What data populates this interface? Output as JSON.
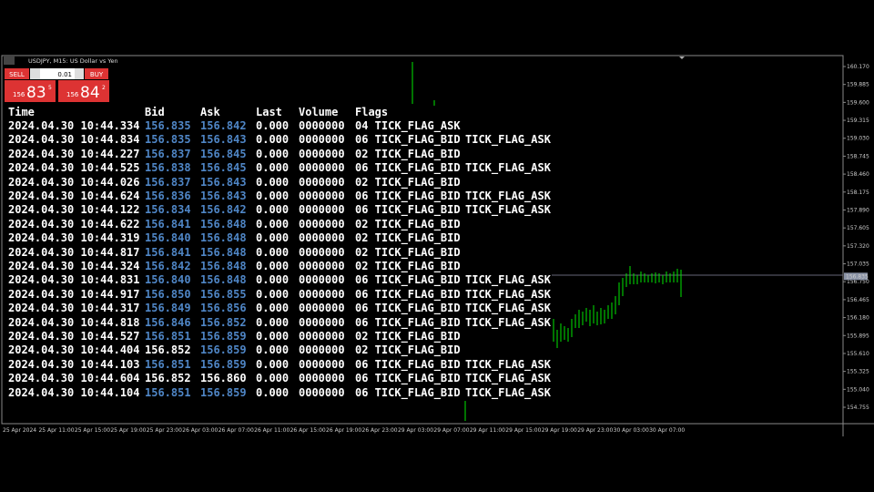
{
  "window": {
    "title": "USDJPY, M15:  US Dollar vs Yen"
  },
  "trade_panel": {
    "sell": "SELL",
    "buy": "BUY",
    "lot": "0.01",
    "sell_big": "83",
    "sell_small": "156",
    "sell_sup": "5",
    "buy_big": "84",
    "buy_small": "156",
    "buy_sup": "2"
  },
  "colors": {
    "changed": "#4f86c6",
    "unchanged": "#ffffff"
  },
  "table": {
    "headers": [
      "Time",
      "Bid",
      "Ask",
      "Last",
      "Volume",
      "Flags"
    ],
    "rows": [
      {
        "time": "2024.04.30 10:44.334",
        "bid": "156.835",
        "ask": "156.842",
        "last": "0.000",
        "volume": "0000000",
        "flags": [
          "04 TICK_FLAG_ASK"
        ],
        "bid_changed": true,
        "ask_changed": true
      },
      {
        "time": "2024.04.30 10:44.834",
        "bid": "156.835",
        "ask": "156.843",
        "last": "0.000",
        "volume": "0000000",
        "flags": [
          "06 TICK_FLAG_BID",
          "TICK_FLAG_ASK"
        ],
        "bid_changed": true,
        "ask_changed": true
      },
      {
        "time": "2024.04.30 10:44.227",
        "bid": "156.837",
        "ask": "156.845",
        "last": "0.000",
        "volume": "0000000",
        "flags": [
          "02 TICK_FLAG_BID"
        ],
        "bid_changed": true,
        "ask_changed": true
      },
      {
        "time": "2024.04.30 10:44.525",
        "bid": "156.838",
        "ask": "156.845",
        "last": "0.000",
        "volume": "0000000",
        "flags": [
          "06 TICK_FLAG_BID",
          "TICK_FLAG_ASK"
        ],
        "bid_changed": true,
        "ask_changed": true
      },
      {
        "time": "2024.04.30 10:44.026",
        "bid": "156.837",
        "ask": "156.843",
        "last": "0.000",
        "volume": "0000000",
        "flags": [
          "02 TICK_FLAG_BID"
        ],
        "bid_changed": true,
        "ask_changed": true
      },
      {
        "time": "2024.04.30 10:44.624",
        "bid": "156.836",
        "ask": "156.843",
        "last": "0.000",
        "volume": "0000000",
        "flags": [
          "06 TICK_FLAG_BID",
          "TICK_FLAG_ASK"
        ],
        "bid_changed": true,
        "ask_changed": true
      },
      {
        "time": "2024.04.30 10:44.122",
        "bid": "156.834",
        "ask": "156.842",
        "last": "0.000",
        "volume": "0000000",
        "flags": [
          "06 TICK_FLAG_BID",
          "TICK_FLAG_ASK"
        ],
        "bid_changed": true,
        "ask_changed": true
      },
      {
        "time": "2024.04.30 10:44.622",
        "bid": "156.841",
        "ask": "156.848",
        "last": "0.000",
        "volume": "0000000",
        "flags": [
          "02 TICK_FLAG_BID"
        ],
        "bid_changed": true,
        "ask_changed": true
      },
      {
        "time": "2024.04.30 10:44.319",
        "bid": "156.840",
        "ask": "156.848",
        "last": "0.000",
        "volume": "0000000",
        "flags": [
          "02 TICK_FLAG_BID"
        ],
        "bid_changed": true,
        "ask_changed": true
      },
      {
        "time": "2024.04.30 10:44.817",
        "bid": "156.841",
        "ask": "156.848",
        "last": "0.000",
        "volume": "0000000",
        "flags": [
          "02 TICK_FLAG_BID"
        ],
        "bid_changed": true,
        "ask_changed": true
      },
      {
        "time": "2024.04.30 10:44.324",
        "bid": "156.842",
        "ask": "156.848",
        "last": "0.000",
        "volume": "0000000",
        "flags": [
          "02 TICK_FLAG_BID"
        ],
        "bid_changed": true,
        "ask_changed": true
      },
      {
        "time": "2024.04.30 10:44.831",
        "bid": "156.840",
        "ask": "156.848",
        "last": "0.000",
        "volume": "0000000",
        "flags": [
          "06 TICK_FLAG_BID",
          "TICK_FLAG_ASK"
        ],
        "bid_changed": true,
        "ask_changed": true
      },
      {
        "time": "2024.04.30 10:44.917",
        "bid": "156.850",
        "ask": "156.855",
        "last": "0.000",
        "volume": "0000000",
        "flags": [
          "06 TICK_FLAG_BID",
          "TICK_FLAG_ASK"
        ],
        "bid_changed": true,
        "ask_changed": true
      },
      {
        "time": "2024.04.30 10:44.317",
        "bid": "156.849",
        "ask": "156.856",
        "last": "0.000",
        "volume": "0000000",
        "flags": [
          "06 TICK_FLAG_BID",
          "TICK_FLAG_ASK"
        ],
        "bid_changed": true,
        "ask_changed": true
      },
      {
        "time": "2024.04.30 10:44.818",
        "bid": "156.846",
        "ask": "156.852",
        "last": "0.000",
        "volume": "0000000",
        "flags": [
          "06 TICK_FLAG_BID",
          "TICK_FLAG_ASK"
        ],
        "bid_changed": true,
        "ask_changed": true
      },
      {
        "time": "2024.04.30 10:44.527",
        "bid": "156.851",
        "ask": "156.859",
        "last": "0.000",
        "volume": "0000000",
        "flags": [
          "02 TICK_FLAG_BID"
        ],
        "bid_changed": true,
        "ask_changed": true
      },
      {
        "time": "2024.04.30 10:44.404",
        "bid": "156.852",
        "ask": "156.859",
        "last": "0.000",
        "volume": "0000000",
        "flags": [
          "02 TICK_FLAG_BID"
        ],
        "bid_changed": false,
        "ask_changed": true
      },
      {
        "time": "2024.04.30 10:44.103",
        "bid": "156.851",
        "ask": "156.859",
        "last": "0.000",
        "volume": "0000000",
        "flags": [
          "06 TICK_FLAG_BID",
          "TICK_FLAG_ASK"
        ],
        "bid_changed": true,
        "ask_changed": true
      },
      {
        "time": "2024.04.30 10:44.604",
        "bid": "156.852",
        "ask": "156.860",
        "last": "0.000",
        "volume": "0000000",
        "flags": [
          "06 TICK_FLAG_BID",
          "TICK_FLAG_ASK"
        ],
        "bid_changed": false,
        "ask_changed": false
      },
      {
        "time": "2024.04.30 10:44.104",
        "bid": "156.851",
        "ask": "156.859",
        "last": "0.000",
        "volume": "0000000",
        "flags": [
          "06 TICK_FLAG_BID",
          "TICK_FLAG_ASK"
        ],
        "bid_changed": true,
        "ask_changed": true
      }
    ]
  },
  "price_axis": {
    "labels": [
      "160.170",
      "159.885",
      "159.600",
      "159.315",
      "159.030",
      "158.745",
      "158.460",
      "158.175",
      "157.890",
      "157.605",
      "157.320",
      "157.035",
      "156.750",
      "156.465",
      "156.180",
      "155.895",
      "155.610",
      "155.325",
      "155.040",
      "154.755"
    ],
    "current": "156.835"
  },
  "time_axis": {
    "labels": [
      "25 Apr 2024",
      "25 Apr 11:00",
      "25 Apr 15:00",
      "25 Apr 19:00",
      "25 Apr 23:00",
      "26 Apr 03:00",
      "26 Apr 07:00",
      "26 Apr 11:00",
      "26 Apr 15:00",
      "26 Apr 19:00",
      "26 Apr 23:00",
      "29 Apr 03:00",
      "29 Apr 07:00",
      "29 Apr 11:00",
      "29 Apr 15:00",
      "29 Apr 19:00",
      "29 Apr 23:00",
      "30 Apr 03:00",
      "30 Apr 07:00"
    ]
  }
}
